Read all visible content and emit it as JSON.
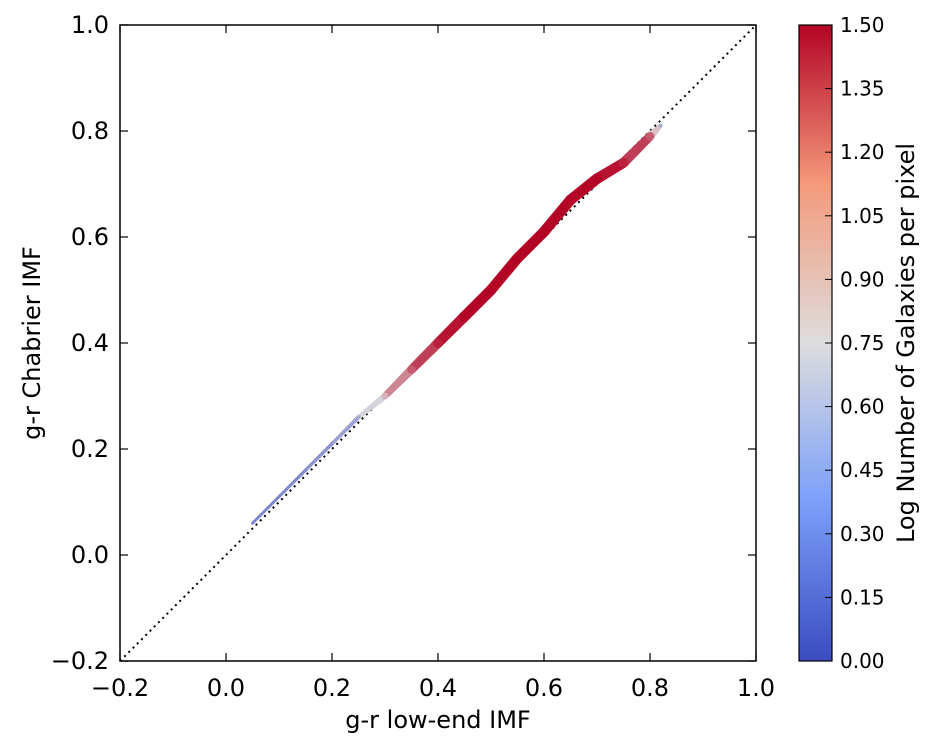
{
  "chart_data": {
    "type": "scatter",
    "title": "",
    "xlabel": "g-r low-end IMF",
    "ylabel": "g-r Chabrier IMF",
    "xlim": [
      -0.2,
      1.0
    ],
    "ylim": [
      -0.2,
      1.0
    ],
    "x_ticks": [
      "−0.2",
      "0.0",
      "0.2",
      "0.4",
      "0.6",
      "0.8",
      "1.0"
    ],
    "y_ticks": [
      "−0.2",
      "0.0",
      "0.2",
      "0.4",
      "0.6",
      "0.8",
      "1.0"
    ],
    "x_tick_values": [
      -0.2,
      0.0,
      0.2,
      0.4,
      0.6,
      0.8,
      1.0
    ],
    "y_tick_values": [
      -0.2,
      0.0,
      0.2,
      0.4,
      0.6,
      0.8,
      1.0
    ],
    "reference_line": {
      "style": "dotted",
      "color": "#000000",
      "from": [
        -0.2,
        -0.2
      ],
      "to": [
        1.0,
        1.0
      ]
    },
    "colorbar": {
      "label": "Log Number of Galaxies per pixel",
      "range": [
        0.0,
        1.5
      ],
      "ticks": [
        "0.00",
        "0.15",
        "0.30",
        "0.45",
        "0.60",
        "0.75",
        "0.90",
        "1.05",
        "1.20",
        "1.35",
        "1.50"
      ],
      "tick_values": [
        0.0,
        0.15,
        0.3,
        0.45,
        0.6,
        0.75,
        0.9,
        1.05,
        1.2,
        1.35,
        1.5
      ],
      "colormap": "coolwarm",
      "color_low": "#3b4cc0",
      "color_mid": "#dddddd",
      "color_high": "#b40426"
    },
    "density_points": [
      {
        "x": 0.05,
        "y": 0.06,
        "density": 0.3
      },
      {
        "x": 0.1,
        "y": 0.11,
        "density": 0.3
      },
      {
        "x": 0.15,
        "y": 0.16,
        "density": 0.35
      },
      {
        "x": 0.2,
        "y": 0.21,
        "density": 0.4
      },
      {
        "x": 0.25,
        "y": 0.26,
        "density": 0.5
      },
      {
        "x": 0.3,
        "y": 0.3,
        "density": 0.9
      },
      {
        "x": 0.35,
        "y": 0.35,
        "density": 1.2
      },
      {
        "x": 0.4,
        "y": 0.4,
        "density": 1.4
      },
      {
        "x": 0.45,
        "y": 0.45,
        "density": 1.5
      },
      {
        "x": 0.5,
        "y": 0.5,
        "density": 1.5
      },
      {
        "x": 0.55,
        "y": 0.56,
        "density": 1.5
      },
      {
        "x": 0.6,
        "y": 0.61,
        "density": 1.5
      },
      {
        "x": 0.65,
        "y": 0.67,
        "density": 1.5
      },
      {
        "x": 0.7,
        "y": 0.71,
        "density": 1.5
      },
      {
        "x": 0.75,
        "y": 0.74,
        "density": 1.4
      },
      {
        "x": 0.8,
        "y": 0.79,
        "density": 1.2
      },
      {
        "x": 0.82,
        "y": 0.81,
        "density": 0.5
      }
    ],
    "grid": false,
    "legend": "none"
  }
}
